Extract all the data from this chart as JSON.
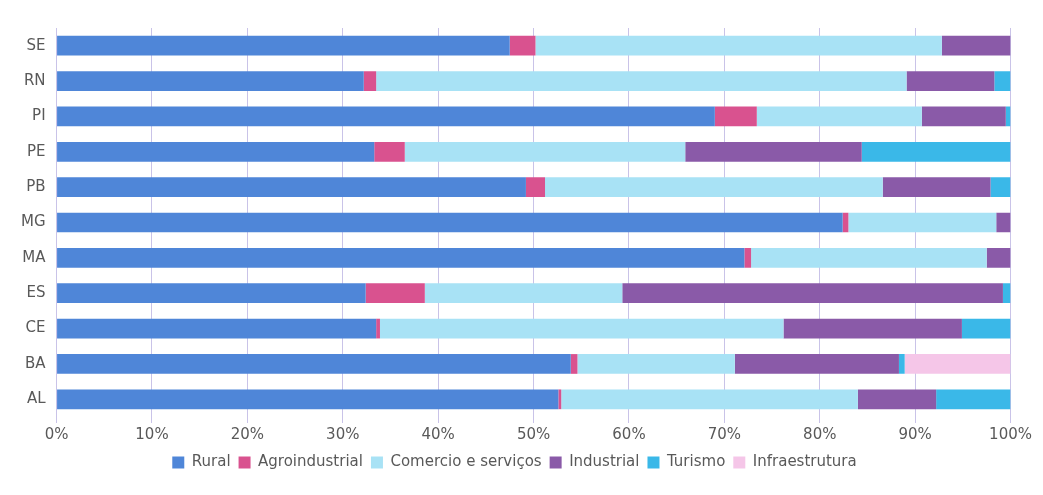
{
  "chart_data": {
    "type": "bar",
    "orientation": "horizontal",
    "stacked": true,
    "categories": [
      "SE",
      "RN",
      "PI",
      "PE",
      "PB",
      "MG",
      "MA",
      "ES",
      "CE",
      "BA",
      "AL"
    ],
    "series": [
      {
        "name": "Rural",
        "color": "#4f86d8",
        "values": [
          47.5,
          32.2,
          69,
          33.3,
          49.2,
          82.4,
          72.1,
          32.4,
          33.5,
          53.9,
          52.6
        ]
      },
      {
        "name": "Agroindustrial",
        "color": "#d9528f",
        "values": [
          2.7,
          1.3,
          4.4,
          3.2,
          2.0,
          0.6,
          0.7,
          6.2,
          0.4,
          0.7,
          0.3
        ]
      },
      {
        "name": "Comercio e serviços",
        "color": "#a8e2f5",
        "values": [
          42.6,
          55.6,
          17.3,
          29.4,
          35.4,
          15.5,
          24.7,
          20.7,
          42.3,
          16.5,
          31.1
        ]
      },
      {
        "name": "Industrial",
        "color": "#8a5aa8",
        "values": [
          7.2,
          9.2,
          8.8,
          18.5,
          11.3,
          1.5,
          2.5,
          39.9,
          18.7,
          17.2,
          8.2
        ]
      },
      {
        "name": "Turismo",
        "color": "#3ab8e8",
        "values": [
          0,
          1.7,
          0.5,
          15.6,
          2.1,
          0,
          0,
          0.8,
          5.1,
          0.6,
          7.8
        ]
      },
      {
        "name": "Infraestrutura",
        "color": "#f5c6e8",
        "values": [
          0,
          0,
          0,
          0,
          0,
          0,
          0,
          0,
          0,
          11.1,
          0
        ]
      }
    ],
    "xlim": [
      0,
      100
    ],
    "xticks": [
      {
        "value": 0,
        "label": "0%"
      },
      {
        "value": 10,
        "label": "10%"
      },
      {
        "value": 20,
        "label": "20%"
      },
      {
        "value": 30,
        "label": "30%"
      },
      {
        "value": 40,
        "label": "40%"
      },
      {
        "value": 50,
        "label": "50%"
      },
      {
        "value": 60,
        "label": "60%"
      },
      {
        "value": 70,
        "label": "70%"
      },
      {
        "value": 80,
        "label": "80%"
      },
      {
        "value": 90,
        "label": "90%"
      },
      {
        "value": 100,
        "label": "100%"
      }
    ],
    "grid": "x",
    "legend": "bottom"
  }
}
